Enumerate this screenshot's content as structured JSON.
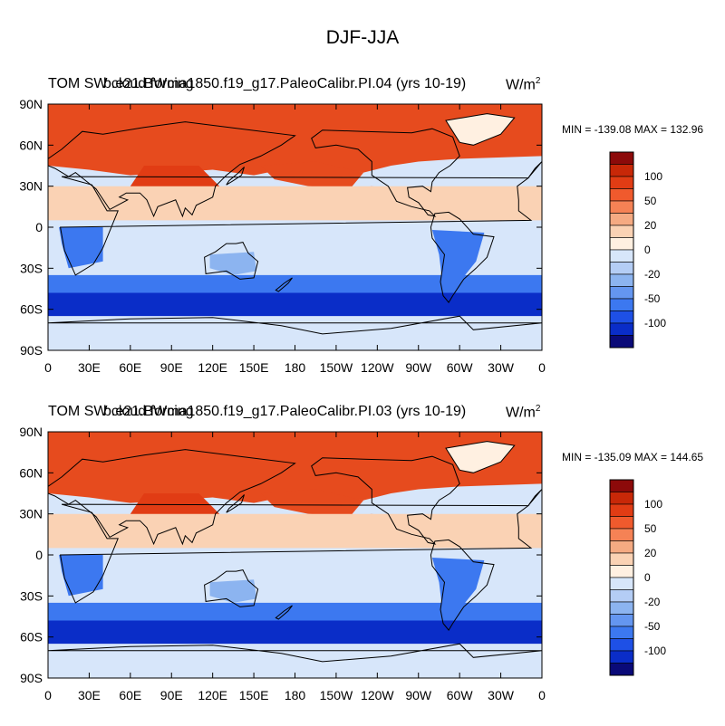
{
  "figure": {
    "title": "DJF-JJA"
  },
  "panels": [
    {
      "left_title": "TOM SW cloud forcing",
      "center_title": "b.e21.BWma1850.f19_g17.PaleoCalibr.PI.04 (yrs 10-19)",
      "units_base": "W/m",
      "units_exp": "2",
      "minmax": "MIN = -139.08 MAX = 132.96"
    },
    {
      "left_title": "TOM SW cloud forcing",
      "center_title": "b.e21.BWma1850.f19_g17.PaleoCalibr.PI.03 (yrs 10-19)",
      "units_base": "W/m",
      "units_exp": "2",
      "minmax": "MIN = -135.09 MAX = 144.65"
    }
  ],
  "axes": {
    "lat_labels": [
      "90N",
      "60N",
      "30N",
      "0",
      "30S",
      "60S",
      "90S"
    ],
    "lon_labels": [
      "0",
      "30E",
      "60E",
      "90E",
      "120E",
      "150E",
      "180",
      "150W",
      "120W",
      "90W",
      "60W",
      "30W",
      "0"
    ]
  },
  "colorbar": {
    "colors": [
      "#0a0a78",
      "#0a2dc8",
      "#1e50e6",
      "#3c78f0",
      "#6496f0",
      "#8cb4f0",
      "#b4cdf5",
      "#d7e6fa",
      "#fff0e1",
      "#fad2b4",
      "#f5aa82",
      "#f58255",
      "#f05a2d",
      "#e13c14",
      "#c82808",
      "#8c0a0a"
    ],
    "labels": [
      "100",
      "50",
      "20",
      "0",
      "-20",
      "-50",
      "-100"
    ]
  },
  "field_colors": {
    "arctic_warm": "#e64b1e",
    "ocean_red": "#e13c14",
    "tropical_light_pos": "#fad2b4",
    "light_neg": "#d7e6fa",
    "mid_neg": "#8cb4f0",
    "south_ocean_deep": "#0a2dc8",
    "south_ocean_band": "#3c78f0",
    "antarctica": "#d7e6fa",
    "greenland": "#fff0e1"
  }
}
